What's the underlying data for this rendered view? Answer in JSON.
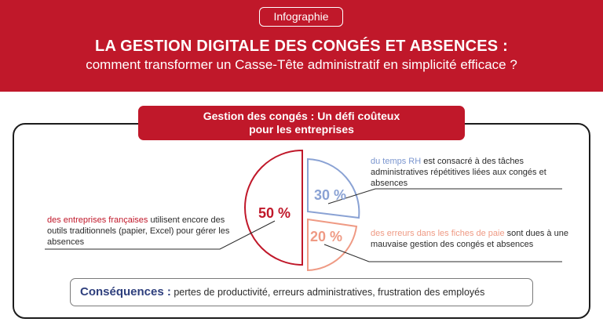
{
  "header": {
    "badge": "Infographie",
    "title": "LA GESTION DIGITALE DES CONGÉS ET ABSENCES :",
    "subtitle": "comment transformer un Casse-Tête administratif en simplicité efficace ?"
  },
  "banner": {
    "line1": "Gestion des congés : Un défi coûteux",
    "line2": "pour les entreprises"
  },
  "stats": [
    {
      "value": "50 %",
      "highlight": "des entreprises françaises",
      "text": " utilisent encore des outils traditionnels (papier, Excel) pour gérer les absences"
    },
    {
      "value": "30 %",
      "highlight": "du temps RH",
      "text": " est consacré à des tâches administratives répétitives liées aux congés et absences"
    },
    {
      "value": "20 %",
      "highlight": "des erreurs dans les fiches de paie",
      "text": " sont dues à une mauvaise gestion des congés et absences"
    }
  ],
  "consequences": {
    "label": "Conséquences :",
    "text": " pertes de productivité, erreurs administratives, frustration des employés"
  },
  "colors": {
    "brand_red": "#c0182a",
    "blue": "#8aa2d4",
    "salmon": "#ef9a84",
    "navy": "#2e3f7d"
  }
}
